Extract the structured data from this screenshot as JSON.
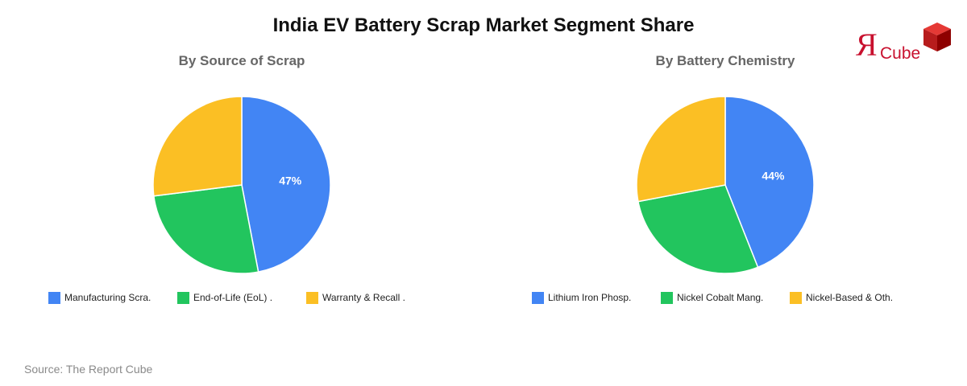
{
  "title": "India EV Battery Scrap Market Segment Share",
  "source": "Source: The Report Cube",
  "logo": {
    "mark": "Я",
    "text": "Cube",
    "color": "#c8102e"
  },
  "colors": {
    "blue": "#4285f4",
    "green": "#22c55e",
    "yellow": "#fbbf24"
  },
  "chart_data": [
    {
      "type": "pie",
      "title": "By Source of Scrap",
      "labels": [
        "Manufacturing Scra.",
        "End-of-Life (EoL) .",
        "Warranty & Recall ."
      ],
      "values": [
        47,
        26,
        27
      ],
      "colors": [
        "#4285f4",
        "#22c55e",
        "#fbbf24"
      ],
      "data_labels": [
        "47%",
        "",
        ""
      ],
      "legend": "bottom"
    },
    {
      "type": "pie",
      "title": "By Battery Chemistry",
      "labels": [
        "Lithium Iron Phosp.",
        "Nickel Cobalt Mang.",
        "Nickel-Based & Oth."
      ],
      "values": [
        44,
        28,
        28
      ],
      "colors": [
        "#4285f4",
        "#22c55e",
        "#fbbf24"
      ],
      "data_labels": [
        "44%",
        "",
        ""
      ],
      "legend": "bottom"
    }
  ]
}
